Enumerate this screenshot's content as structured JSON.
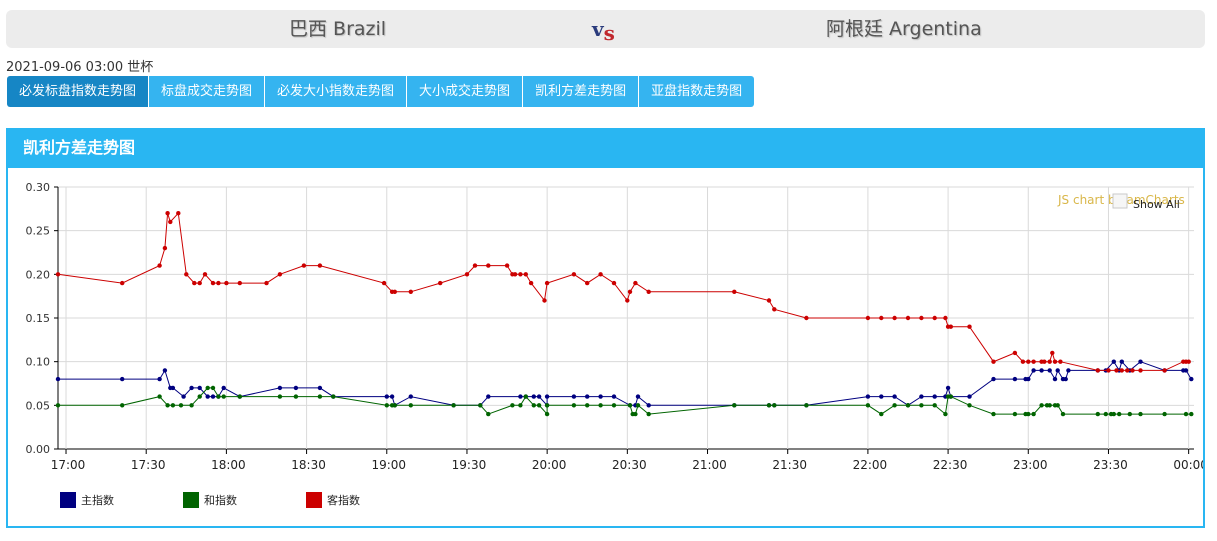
{
  "match": {
    "home_team": "巴西 Brazil",
    "away_team": "阿根廷 Argentina",
    "vs_v": "v",
    "vs_s": "s",
    "info": "2021-09-06 03:00 世杯"
  },
  "tabs": [
    {
      "label": "必发标盘指数走势图",
      "active": true
    },
    {
      "label": "标盘成交走势图",
      "active": false
    },
    {
      "label": "必发大小指数走势图",
      "active": false
    },
    {
      "label": "大小成交走势图",
      "active": false
    },
    {
      "label": "凯利方差走势图",
      "active": false
    },
    {
      "label": "亚盘指数走势图",
      "active": false
    }
  ],
  "panel": {
    "title": "凯利方差走势图"
  },
  "chart_overlay": {
    "credit": "JS chart by amCharts",
    "show_all": "Show All"
  },
  "chart_data": {
    "type": "line",
    "y_ticks": [
      "0.30",
      "0.25",
      "0.20",
      "0.15",
      "0.10",
      "0.05",
      "0.00"
    ],
    "x_ticks": [
      "17:00",
      "17:30",
      "18:00",
      "18:30",
      "19:00",
      "19:30",
      "20:00",
      "20:30",
      "21:00",
      "21:30",
      "22:00",
      "22:30",
      "23:00",
      "23:30",
      "00:00"
    ],
    "x_range": [
      "16:57",
      "00:02"
    ],
    "ylim": [
      0,
      0.3
    ],
    "grid": true,
    "legend_position": "bottom-left",
    "series": [
      {
        "name": "主指数",
        "color": "#000080",
        "points": [
          [
            "16:57",
            0.08
          ],
          [
            "17:21",
            0.08
          ],
          [
            "17:35",
            0.08
          ],
          [
            "17:37",
            0.09
          ],
          [
            "17:39",
            0.07
          ],
          [
            "17:40",
            0.07
          ],
          [
            "17:44",
            0.06
          ],
          [
            "17:47",
            0.07
          ],
          [
            "17:50",
            0.07
          ],
          [
            "17:53",
            0.06
          ],
          [
            "17:55",
            0.06
          ],
          [
            "17:57",
            0.06
          ],
          [
            "17:59",
            0.07
          ],
          [
            "18:05",
            0.06
          ],
          [
            "18:20",
            0.07
          ],
          [
            "18:26",
            0.07
          ],
          [
            "18:35",
            0.07
          ],
          [
            "18:40",
            0.06
          ],
          [
            "19:00",
            0.06
          ],
          [
            "19:02",
            0.06
          ],
          [
            "19:03",
            0.05
          ],
          [
            "19:09",
            0.06
          ],
          [
            "19:25",
            0.05
          ],
          [
            "19:35",
            0.05
          ],
          [
            "19:38",
            0.06
          ],
          [
            "19:50",
            0.06
          ],
          [
            "19:52",
            0.06
          ],
          [
            "19:55",
            0.06
          ],
          [
            "19:57",
            0.06
          ],
          [
            "20:00",
            0.05
          ],
          [
            "20:00",
            0.06
          ],
          [
            "20:10",
            0.06
          ],
          [
            "20:15",
            0.06
          ],
          [
            "20:20",
            0.06
          ],
          [
            "20:25",
            0.06
          ],
          [
            "20:31",
            0.05
          ],
          [
            "20:33",
            0.05
          ],
          [
            "20:34",
            0.06
          ],
          [
            "20:38",
            0.05
          ],
          [
            "21:10",
            0.05
          ],
          [
            "21:23",
            0.05
          ],
          [
            "21:25",
            0.05
          ],
          [
            "21:37",
            0.05
          ],
          [
            "22:00",
            0.06
          ],
          [
            "22:05",
            0.06
          ],
          [
            "22:10",
            0.06
          ],
          [
            "22:15",
            0.05
          ],
          [
            "22:20",
            0.06
          ],
          [
            "22:25",
            0.06
          ],
          [
            "22:29",
            0.06
          ],
          [
            "22:30",
            0.07
          ],
          [
            "22:31",
            0.06
          ],
          [
            "22:38",
            0.06
          ],
          [
            "22:47",
            0.08
          ],
          [
            "22:55",
            0.08
          ],
          [
            "22:59",
            0.08
          ],
          [
            "23:00",
            0.08
          ],
          [
            "23:02",
            0.09
          ],
          [
            "23:05",
            0.09
          ],
          [
            "23:08",
            0.09
          ],
          [
            "23:10",
            0.08
          ],
          [
            "23:11",
            0.09
          ],
          [
            "23:13",
            0.08
          ],
          [
            "23:14",
            0.08
          ],
          [
            "23:15",
            0.09
          ],
          [
            "23:26",
            0.09
          ],
          [
            "23:29",
            0.09
          ],
          [
            "23:32",
            0.1
          ],
          [
            "23:34",
            0.09
          ],
          [
            "23:35",
            0.1
          ],
          [
            "23:38",
            0.09
          ],
          [
            "23:42",
            0.1
          ],
          [
            "23:51",
            0.09
          ],
          [
            "23:58",
            0.09
          ],
          [
            "23:59",
            0.09
          ],
          [
            "00:01",
            0.08
          ]
        ]
      },
      {
        "name": "和指数",
        "color": "#006400",
        "points": [
          [
            "16:57",
            0.05
          ],
          [
            "17:21",
            0.05
          ],
          [
            "17:35",
            0.06
          ],
          [
            "17:38",
            0.05
          ],
          [
            "17:40",
            0.05
          ],
          [
            "17:43",
            0.05
          ],
          [
            "17:47",
            0.05
          ],
          [
            "17:50",
            0.06
          ],
          [
            "17:53",
            0.07
          ],
          [
            "17:55",
            0.07
          ],
          [
            "17:57",
            0.06
          ],
          [
            "17:59",
            0.06
          ],
          [
            "18:05",
            0.06
          ],
          [
            "18:20",
            0.06
          ],
          [
            "18:26",
            0.06
          ],
          [
            "18:35",
            0.06
          ],
          [
            "18:40",
            0.06
          ],
          [
            "19:00",
            0.05
          ],
          [
            "19:02",
            0.05
          ],
          [
            "19:03",
            0.05
          ],
          [
            "19:09",
            0.05
          ],
          [
            "19:25",
            0.05
          ],
          [
            "19:35",
            0.05
          ],
          [
            "19:38",
            0.04
          ],
          [
            "19:47",
            0.05
          ],
          [
            "19:50",
            0.05
          ],
          [
            "19:52",
            0.06
          ],
          [
            "19:55",
            0.05
          ],
          [
            "19:57",
            0.05
          ],
          [
            "20:00",
            0.04
          ],
          [
            "20:00",
            0.05
          ],
          [
            "20:10",
            0.05
          ],
          [
            "20:15",
            0.05
          ],
          [
            "20:20",
            0.05
          ],
          [
            "20:25",
            0.05
          ],
          [
            "20:31",
            0.05
          ],
          [
            "20:32",
            0.04
          ],
          [
            "20:33",
            0.04
          ],
          [
            "20:34",
            0.05
          ],
          [
            "20:38",
            0.04
          ],
          [
            "21:10",
            0.05
          ],
          [
            "21:23",
            0.05
          ],
          [
            "21:25",
            0.05
          ],
          [
            "21:37",
            0.05
          ],
          [
            "22:00",
            0.05
          ],
          [
            "22:05",
            0.04
          ],
          [
            "22:10",
            0.05
          ],
          [
            "22:15",
            0.05
          ],
          [
            "22:20",
            0.05
          ],
          [
            "22:25",
            0.05
          ],
          [
            "22:29",
            0.04
          ],
          [
            "22:30",
            0.06
          ],
          [
            "22:31",
            0.06
          ],
          [
            "22:38",
            0.05
          ],
          [
            "22:47",
            0.04
          ],
          [
            "22:55",
            0.04
          ],
          [
            "22:59",
            0.04
          ],
          [
            "23:00",
            0.04
          ],
          [
            "23:02",
            0.04
          ],
          [
            "23:05",
            0.05
          ],
          [
            "23:07",
            0.05
          ],
          [
            "23:08",
            0.05
          ],
          [
            "23:10",
            0.05
          ],
          [
            "23:11",
            0.05
          ],
          [
            "23:13",
            0.04
          ],
          [
            "23:26",
            0.04
          ],
          [
            "23:29",
            0.04
          ],
          [
            "23:31",
            0.04
          ],
          [
            "23:32",
            0.04
          ],
          [
            "23:34",
            0.04
          ],
          [
            "23:38",
            0.04
          ],
          [
            "23:42",
            0.04
          ],
          [
            "23:51",
            0.04
          ],
          [
            "23:59",
            0.04
          ],
          [
            "00:01",
            0.04
          ]
        ]
      },
      {
        "name": "客指数",
        "color": "#cc0000",
        "points": [
          [
            "16:57",
            0.2
          ],
          [
            "17:21",
            0.19
          ],
          [
            "17:35",
            0.21
          ],
          [
            "17:37",
            0.23
          ],
          [
            "17:38",
            0.27
          ],
          [
            "17:39",
            0.26
          ],
          [
            "17:42",
            0.27
          ],
          [
            "17:45",
            0.2
          ],
          [
            "17:48",
            0.19
          ],
          [
            "17:50",
            0.19
          ],
          [
            "17:52",
            0.2
          ],
          [
            "17:55",
            0.19
          ],
          [
            "17:57",
            0.19
          ],
          [
            "18:00",
            0.19
          ],
          [
            "18:05",
            0.19
          ],
          [
            "18:15",
            0.19
          ],
          [
            "18:20",
            0.2
          ],
          [
            "18:29",
            0.21
          ],
          [
            "18:35",
            0.21
          ],
          [
            "18:59",
            0.19
          ],
          [
            "19:02",
            0.18
          ],
          [
            "19:03",
            0.18
          ],
          [
            "19:09",
            0.18
          ],
          [
            "19:20",
            0.19
          ],
          [
            "19:30",
            0.2
          ],
          [
            "19:33",
            0.21
          ],
          [
            "19:38",
            0.21
          ],
          [
            "19:45",
            0.21
          ],
          [
            "19:47",
            0.2
          ],
          [
            "19:48",
            0.2
          ],
          [
            "19:50",
            0.2
          ],
          [
            "19:52",
            0.2
          ],
          [
            "19:54",
            0.19
          ],
          [
            "19:59",
            0.17
          ],
          [
            "20:00",
            0.19
          ],
          [
            "20:10",
            0.2
          ],
          [
            "20:15",
            0.19
          ],
          [
            "20:20",
            0.2
          ],
          [
            "20:25",
            0.19
          ],
          [
            "20:30",
            0.17
          ],
          [
            "20:31",
            0.18
          ],
          [
            "20:33",
            0.19
          ],
          [
            "20:38",
            0.18
          ],
          [
            "21:10",
            0.18
          ],
          [
            "21:23",
            0.17
          ],
          [
            "21:25",
            0.16
          ],
          [
            "21:37",
            0.15
          ],
          [
            "22:00",
            0.15
          ],
          [
            "22:05",
            0.15
          ],
          [
            "22:10",
            0.15
          ],
          [
            "22:15",
            0.15
          ],
          [
            "22:20",
            0.15
          ],
          [
            "22:25",
            0.15
          ],
          [
            "22:29",
            0.15
          ],
          [
            "22:30",
            0.14
          ],
          [
            "22:31",
            0.14
          ],
          [
            "22:38",
            0.14
          ],
          [
            "22:47",
            0.1
          ],
          [
            "22:55",
            0.11
          ],
          [
            "22:58",
            0.1
          ],
          [
            "23:00",
            0.1
          ],
          [
            "23:02",
            0.1
          ],
          [
            "23:05",
            0.1
          ],
          [
            "23:06",
            0.1
          ],
          [
            "23:08",
            0.1
          ],
          [
            "23:09",
            0.11
          ],
          [
            "23:10",
            0.1
          ],
          [
            "23:12",
            0.1
          ],
          [
            "23:26",
            0.09
          ],
          [
            "23:30",
            0.09
          ],
          [
            "23:33",
            0.09
          ],
          [
            "23:35",
            0.09
          ],
          [
            "23:37",
            0.09
          ],
          [
            "23:39",
            0.09
          ],
          [
            "23:42",
            0.09
          ],
          [
            "23:51",
            0.09
          ],
          [
            "23:58",
            0.1
          ],
          [
            "23:59",
            0.1
          ],
          [
            "00:00",
            0.1
          ]
        ]
      }
    ]
  }
}
